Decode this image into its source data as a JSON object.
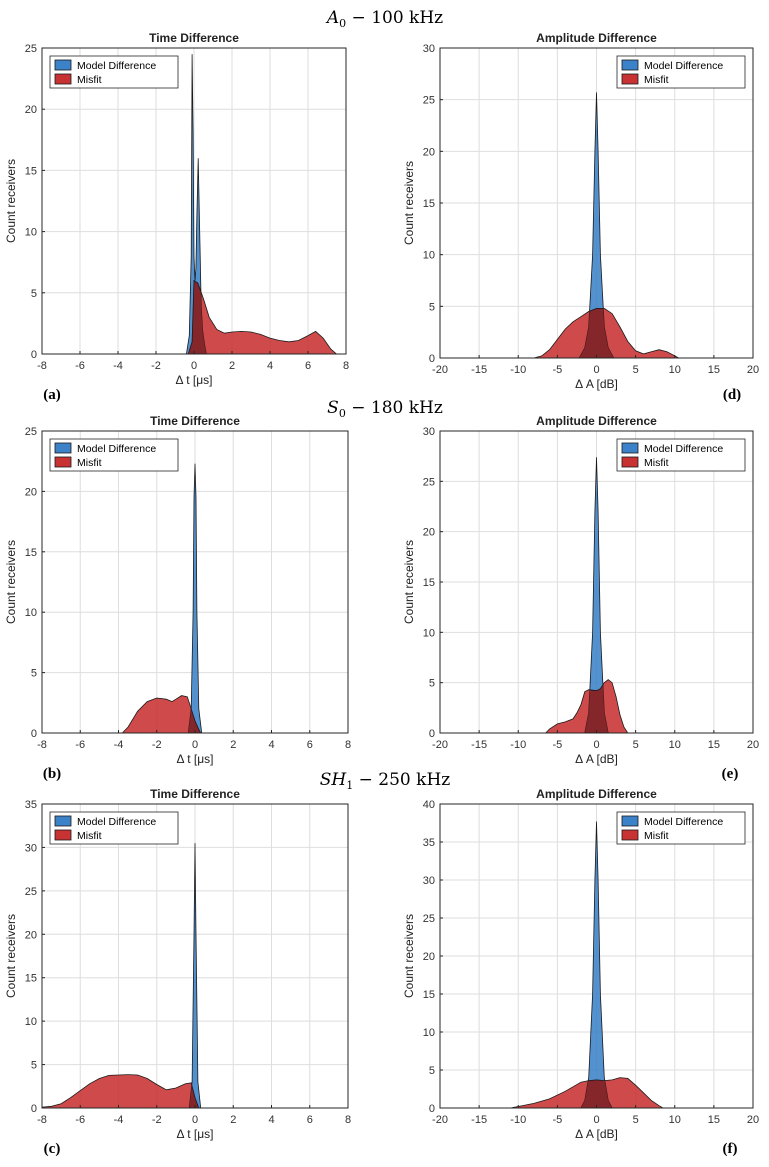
{
  "row_titles": [
    {
      "main": "A",
      "sub": "0",
      "rest": " − 100 kHz"
    },
    {
      "main": "S",
      "sub": "0",
      "rest": " − 180 kHz"
    },
    {
      "main": "SH",
      "sub": "1",
      "rest": " − 250 kHz"
    }
  ],
  "colors": {
    "model": "#3c82c8",
    "misfit": "#c83232",
    "overlap": "#8a1e1e",
    "outline": "#1a1a1a"
  },
  "legend_icons": [
    "blue-patch-icon",
    "red-patch-icon"
  ],
  "chart_data": [
    {
      "panel": "(a)",
      "type": "area",
      "title": "Time Difference",
      "xlabel": "Δ t [μs]",
      "ylabel": "Count receivers",
      "xlim": [
        -8,
        8
      ],
      "ylim": [
        0,
        25
      ],
      "xticks": [
        -8,
        -6,
        -4,
        -2,
        0,
        2,
        4,
        6,
        8
      ],
      "yticks": [
        0,
        5,
        10,
        15,
        20,
        25
      ],
      "grid": true,
      "legend_position": "top-left",
      "series": [
        {
          "name": "Model Difference",
          "x": [
            -0.4,
            -0.25,
            -0.15,
            -0.1,
            -0.05,
            0,
            0.05,
            0.1,
            0.15,
            0.22,
            0.3,
            0.38,
            0.45,
            0.55,
            0.65
          ],
          "y": [
            0,
            1.5,
            8,
            24.5,
            18,
            8,
            6,
            7,
            11,
            16,
            10,
            4,
            2,
            0.8,
            0
          ]
        },
        {
          "name": "Misfit",
          "x": [
            -0.3,
            -0.1,
            0,
            0.2,
            0.5,
            0.8,
            1.2,
            1.6,
            2.0,
            2.5,
            3.0,
            3.5,
            4.0,
            4.5,
            5.0,
            5.5,
            6.0,
            6.4,
            6.8,
            7.2,
            7.5
          ],
          "y": [
            0,
            1,
            6,
            5.8,
            4.5,
            3,
            2,
            1.7,
            1.8,
            1.85,
            1.8,
            1.6,
            1.3,
            1.1,
            1.0,
            1.1,
            1.5,
            1.85,
            1.3,
            0.4,
            0
          ]
        }
      ]
    },
    {
      "panel": "(d)",
      "type": "area",
      "title": "Amplitude Difference",
      "xlabel": "Δ A [dB]",
      "ylabel": "Count receivers",
      "xlim": [
        -20,
        20
      ],
      "ylim": [
        0,
        30
      ],
      "xticks": [
        -20,
        -15,
        -10,
        -5,
        0,
        5,
        10,
        15,
        20
      ],
      "yticks": [
        0,
        5,
        10,
        15,
        20,
        25,
        30
      ],
      "grid": true,
      "legend_position": "top-right",
      "series": [
        {
          "name": "Model Difference",
          "x": [
            -2.2,
            -1.5,
            -1,
            -0.5,
            -0.2,
            0,
            0.2,
            0.5,
            1,
            1.5,
            2.2
          ],
          "y": [
            0,
            1,
            3,
            10,
            20,
            25.7,
            20,
            10,
            3,
            1,
            0
          ]
        },
        {
          "name": "Misfit",
          "x": [
            -8,
            -7,
            -6,
            -5,
            -4,
            -3,
            -2,
            -1,
            0,
            1,
            2,
            3,
            4,
            5,
            6,
            7,
            8,
            9,
            10,
            10.5
          ],
          "y": [
            0,
            0.2,
            0.8,
            1.8,
            2.8,
            3.5,
            4.0,
            4.5,
            4.8,
            4.8,
            4.3,
            3.0,
            1.6,
            0.7,
            0.4,
            0.6,
            0.8,
            0.6,
            0.2,
            0
          ]
        }
      ]
    },
    {
      "panel": "(b)",
      "type": "area",
      "title": "Time Difference",
      "xlabel": "Δ t [μs]",
      "ylabel": "Count receivers",
      "xlim": [
        -8,
        8
      ],
      "ylim": [
        0,
        25
      ],
      "xticks": [
        -8,
        -6,
        -4,
        -2,
        0,
        2,
        4,
        6,
        8
      ],
      "yticks": [
        0,
        5,
        10,
        15,
        20,
        25
      ],
      "grid": true,
      "legend_position": "top-left",
      "series": [
        {
          "name": "Model Difference",
          "x": [
            -0.35,
            -0.2,
            -0.1,
            -0.05,
            0,
            0.05,
            0.1,
            0.2,
            0.35
          ],
          "y": [
            0,
            2,
            10,
            19.5,
            22.3,
            19.5,
            10,
            2,
            0
          ]
        },
        {
          "name": "Misfit",
          "x": [
            -3.8,
            -3.5,
            -3.0,
            -2.5,
            -2.0,
            -1.5,
            -1.2,
            -1.0,
            -0.7,
            -0.4,
            -0.2,
            0,
            0.2,
            0.3
          ],
          "y": [
            0,
            0.5,
            1.8,
            2.6,
            2.9,
            2.8,
            2.6,
            2.8,
            3.1,
            3.0,
            2.0,
            1.0,
            0.3,
            0
          ]
        }
      ]
    },
    {
      "panel": "(e)",
      "type": "area",
      "title": "Amplitude Difference",
      "xlabel": "Δ A [dB]",
      "ylabel": "Count receivers",
      "xlim": [
        -20,
        20
      ],
      "ylim": [
        0,
        30
      ],
      "xticks": [
        -20,
        -15,
        -10,
        -5,
        0,
        5,
        10,
        15,
        20
      ],
      "yticks": [
        0,
        5,
        10,
        15,
        20,
        25,
        30
      ],
      "grid": true,
      "legend_position": "top-right",
      "series": [
        {
          "name": "Model Difference",
          "x": [
            -1.5,
            -1,
            -0.5,
            -0.2,
            0,
            0.2,
            0.5,
            1,
            1.5
          ],
          "y": [
            0,
            2,
            10,
            22,
            27.4,
            22,
            10,
            2,
            0
          ]
        },
        {
          "name": "Misfit",
          "x": [
            -6.5,
            -6,
            -5,
            -4,
            -3,
            -2.5,
            -2,
            -1.5,
            -1,
            0,
            0.5,
            1,
            1.5,
            2,
            2.5,
            3,
            3.5,
            4
          ],
          "y": [
            0,
            0.4,
            0.9,
            1.1,
            1.4,
            2.0,
            2.8,
            4.1,
            4.3,
            4.2,
            4.4,
            5.0,
            5.3,
            5.0,
            3.6,
            1.8,
            0.6,
            0
          ]
        }
      ]
    },
    {
      "panel": "(c)",
      "type": "area",
      "title": "Time Difference",
      "xlabel": "Δ t [μs]",
      "ylabel": "Count receivers",
      "xlim": [
        -8,
        8
      ],
      "ylim": [
        0,
        35
      ],
      "xticks": [
        -8,
        -6,
        -4,
        -2,
        0,
        2,
        4,
        6,
        8
      ],
      "yticks": [
        0,
        5,
        10,
        15,
        20,
        25,
        30,
        35
      ],
      "grid": true,
      "legend_position": "top-left",
      "series": [
        {
          "name": "Model Difference",
          "x": [
            -0.3,
            -0.15,
            -0.05,
            0,
            0.05,
            0.15,
            0.3
          ],
          "y": [
            0,
            3,
            20,
            30.5,
            20,
            3,
            0
          ]
        },
        {
          "name": "Misfit",
          "x": [
            -8,
            -7.5,
            -7,
            -6.5,
            -6,
            -5.5,
            -5,
            -4.5,
            -4,
            -3.5,
            -3,
            -2.5,
            -2,
            -1.5,
            -1,
            -0.5,
            -0.2,
            0,
            0.2
          ],
          "y": [
            0.1,
            0.2,
            0.5,
            1.2,
            2.0,
            2.8,
            3.4,
            3.75,
            3.8,
            3.85,
            3.8,
            3.4,
            2.7,
            2.1,
            2.3,
            2.8,
            2.9,
            1.2,
            0
          ]
        }
      ]
    },
    {
      "panel": "(f)",
      "type": "area",
      "title": "Amplitude Difference",
      "xlabel": "Δ A [dB]",
      "ylabel": "Count receivers",
      "xlim": [
        -20,
        20
      ],
      "ylim": [
        0,
        40
      ],
      "xticks": [
        -20,
        -15,
        -10,
        -5,
        0,
        5,
        10,
        15,
        20
      ],
      "yticks": [
        0,
        5,
        10,
        15,
        20,
        25,
        30,
        35,
        40
      ],
      "grid": true,
      "legend_position": "top-right",
      "series": [
        {
          "name": "Model Difference",
          "x": [
            -2,
            -1.5,
            -1,
            -0.5,
            -0.2,
            0,
            0.2,
            0.5,
            1,
            1.5,
            2
          ],
          "y": [
            0,
            1,
            4,
            15,
            30,
            37.7,
            30,
            15,
            4,
            1,
            0
          ]
        },
        {
          "name": "Misfit",
          "x": [
            -11,
            -10,
            -8,
            -6,
            -4,
            -2,
            -1,
            0,
            1,
            2,
            3,
            4,
            5,
            6,
            7,
            8,
            8.5
          ],
          "y": [
            0,
            0.2,
            0.6,
            1.2,
            2.2,
            3.4,
            3.6,
            3.7,
            3.6,
            3.7,
            4.0,
            3.9,
            3.0,
            2.0,
            1.0,
            0.3,
            0
          ]
        }
      ]
    }
  ]
}
